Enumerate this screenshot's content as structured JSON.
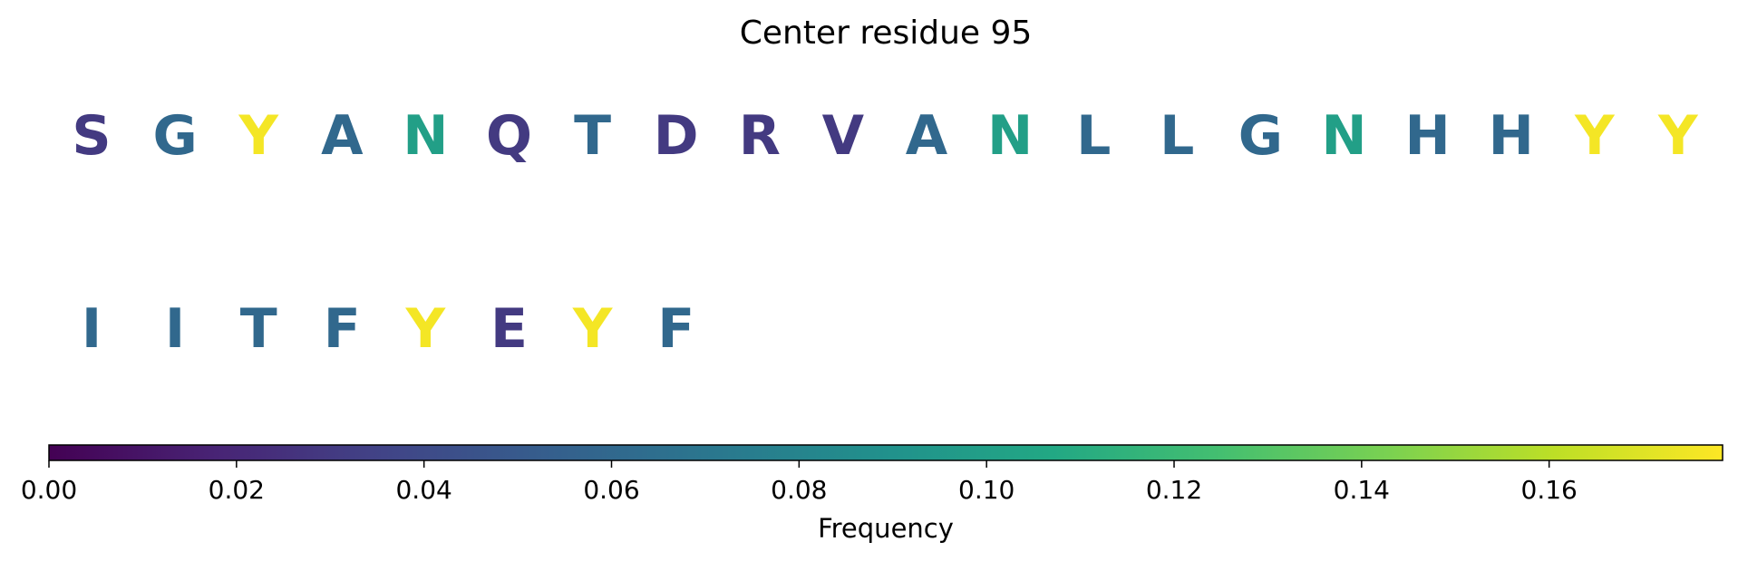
{
  "chart_data": {
    "type": "heatmap",
    "title": "Center residue 95",
    "colormap": "viridis",
    "residues": [
      {
        "letter": "S",
        "frequency": 0.03
      },
      {
        "letter": "G",
        "frequency": 0.06
      },
      {
        "letter": "Y",
        "frequency": 0.176
      },
      {
        "letter": "A",
        "frequency": 0.06
      },
      {
        "letter": "N",
        "frequency": 0.1
      },
      {
        "letter": "Q",
        "frequency": 0.03
      },
      {
        "letter": "T",
        "frequency": 0.06
      },
      {
        "letter": "D",
        "frequency": 0.03
      },
      {
        "letter": "R",
        "frequency": 0.03
      },
      {
        "letter": "V",
        "frequency": 0.03
      },
      {
        "letter": "A",
        "frequency": 0.06
      },
      {
        "letter": "N",
        "frequency": 0.1
      },
      {
        "letter": "L",
        "frequency": 0.06
      },
      {
        "letter": "L",
        "frequency": 0.06
      },
      {
        "letter": "G",
        "frequency": 0.06
      },
      {
        "letter": "N",
        "frequency": 0.1
      },
      {
        "letter": "H",
        "frequency": 0.06
      },
      {
        "letter": "H",
        "frequency": 0.06
      },
      {
        "letter": "Y",
        "frequency": 0.176
      },
      {
        "letter": "Y",
        "frequency": 0.176
      },
      {
        "letter": "I",
        "frequency": 0.06
      },
      {
        "letter": "I",
        "frequency": 0.06
      },
      {
        "letter": "T",
        "frequency": 0.06
      },
      {
        "letter": "F",
        "frequency": 0.06
      },
      {
        "letter": "Y",
        "frequency": 0.176
      },
      {
        "letter": "E",
        "frequency": 0.03
      },
      {
        "letter": "Y",
        "frequency": 0.176
      },
      {
        "letter": "F",
        "frequency": 0.06
      }
    ],
    "colorbar": {
      "label": "Frequency",
      "range": [
        0,
        0.1785
      ],
      "ticks": [
        0.0,
        0.02,
        0.04,
        0.06,
        0.08,
        0.1,
        0.12,
        0.14,
        0.16
      ],
      "tick_labels": [
        "0.00",
        "0.02",
        "0.04",
        "0.06",
        "0.08",
        "0.10",
        "0.12",
        "0.14",
        "0.16"
      ]
    }
  }
}
